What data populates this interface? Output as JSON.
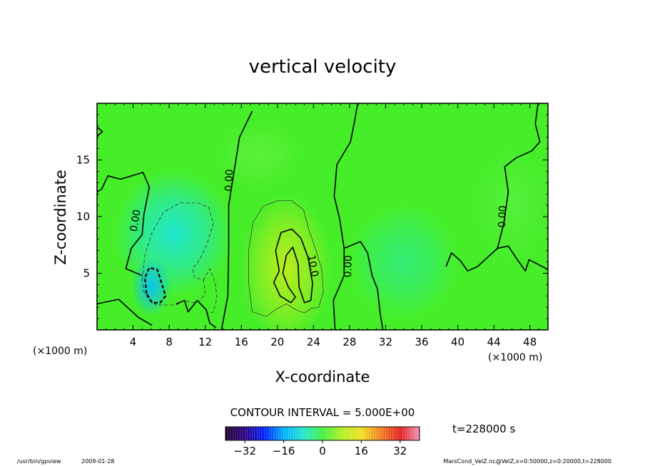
{
  "chart_data": {
    "type": "heatmap",
    "title": "vertical velocity",
    "xlabel": "X-coordinate",
    "ylabel": "Z-coordinate",
    "x_unit_label": "(×1000 m)",
    "y_unit_label": "(×1000 m)",
    "xlim": [
      0,
      50
    ],
    "ylim": [
      0,
      20
    ],
    "x_ticks": [
      4,
      8,
      12,
      16,
      20,
      24,
      28,
      32,
      36,
      40,
      44,
      48
    ],
    "y_ticks": [
      5,
      10,
      15
    ],
    "contour_interval_text": "CONTOUR INTERVAL = 5.000E+00",
    "contour_labels": [
      "0.00",
      "0.00",
      "0.00",
      "0.00",
      "10.0"
    ],
    "colorbar": {
      "min": -40,
      "max": 40,
      "ticks": [
        -32,
        -16,
        0,
        16,
        32
      ],
      "colors": [
        "#200030",
        "#2a0080",
        "#0020ff",
        "#00b0ff",
        "#20e8d0",
        "#40f040",
        "#b0f020",
        "#f0e020",
        "#f08020",
        "#e02020",
        "#f090b0"
      ]
    },
    "fields": [
      {
        "x": 8.5,
        "z": 8.5,
        "rx": 6.5,
        "rz": 5.5,
        "value": -8
      },
      {
        "x": 6.0,
        "z": 3.8,
        "rx": 2.2,
        "rz": 2.6,
        "value": -13
      },
      {
        "x": 21.0,
        "z": 5.5,
        "rx": 5.0,
        "rz": 6.5,
        "value": 9
      },
      {
        "x": 18.0,
        "z": 15.5,
        "rx": 4.5,
        "rz": 3.0,
        "value": 2
      },
      {
        "x": 34.0,
        "z": 6.0,
        "rx": 6.0,
        "rz": 5.0,
        "value": -3
      },
      {
        "x": 46.0,
        "z": 11.0,
        "rx": 4.0,
        "rz": 5.0,
        "value": 1.5
      }
    ],
    "contours": [
      {
        "value": 0,
        "style": "solid",
        "points": [
          [
            13.8,
            0
          ],
          [
            14.5,
            3
          ],
          [
            14.6,
            7
          ],
          [
            14.6,
            11
          ],
          [
            15.2,
            14
          ],
          [
            15.8,
            17
          ],
          [
            17.2,
            19.3
          ]
        ]
      },
      {
        "value": 0,
        "style": "solid",
        "points": [
          [
            5,
            4.8
          ],
          [
            3.2,
            5.4
          ],
          [
            3.8,
            7.2
          ],
          [
            5,
            8.4
          ],
          [
            5.2,
            10.2
          ],
          [
            5.8,
            12.6
          ],
          [
            5.1,
            13.9
          ],
          [
            2.6,
            13.3
          ],
          [
            1.2,
            13.6
          ],
          [
            0.5,
            12.4
          ],
          [
            0,
            12.2
          ]
        ]
      },
      {
        "value": 0,
        "style": "solid",
        "points": [
          [
            0,
            2.3
          ],
          [
            2.4,
            2.7
          ],
          [
            4.6,
            1.1
          ],
          [
            6.1,
            0.4
          ]
        ]
      },
      {
        "value": 0,
        "style": "solid",
        "points": [
          [
            8.8,
            2.3
          ],
          [
            9.7,
            2.6
          ],
          [
            10.1,
            1.6
          ],
          [
            11.1,
            2.6
          ],
          [
            12.1,
            1.8
          ],
          [
            12.5,
            0.6
          ],
          [
            13.2,
            0.2
          ]
        ]
      },
      {
        "value": 0,
        "style": "solid",
        "points": [
          [
            26.4,
            0
          ],
          [
            26.2,
            2.6
          ],
          [
            27.4,
            4.8
          ],
          [
            27.4,
            7.2
          ],
          [
            29.2,
            7.8
          ],
          [
            30,
            6.8
          ],
          [
            30.5,
            4.8
          ],
          [
            31.1,
            3.6
          ],
          [
            31.4,
            1.4
          ],
          [
            31.7,
            0
          ]
        ]
      },
      {
        "value": 0,
        "style": "solid",
        "points": [
          [
            27.4,
            7.2
          ],
          [
            26.9,
            9.8
          ],
          [
            26.3,
            11.8
          ],
          [
            26.6,
            14.6
          ],
          [
            28.1,
            16.6
          ],
          [
            28.6,
            18.6
          ],
          [
            28.9,
            20
          ]
        ]
      },
      {
        "value": 0,
        "style": "solid",
        "points": [
          [
            38.7,
            5.6
          ],
          [
            39.3,
            6.8
          ],
          [
            40.3,
            6.1
          ],
          [
            41.1,
            5.2
          ],
          [
            42.2,
            5.6
          ],
          [
            43.3,
            6.4
          ],
          [
            44.4,
            7.2
          ],
          [
            45.6,
            7.4
          ],
          [
            46.6,
            6.2
          ],
          [
            47.5,
            5.2
          ],
          [
            47.9,
            6.2
          ],
          [
            49.6,
            5.5
          ],
          [
            50,
            5.3
          ]
        ]
      },
      {
        "value": 0,
        "style": "solid",
        "points": [
          [
            44.4,
            7.2
          ],
          [
            45.1,
            9.4
          ],
          [
            45.6,
            12.2
          ],
          [
            45.2,
            14.4
          ],
          [
            46.5,
            15.2
          ],
          [
            48.2,
            15.8
          ],
          [
            49.1,
            16.6
          ],
          [
            48.6,
            18.2
          ],
          [
            48.9,
            20
          ]
        ]
      },
      {
        "value": 0,
        "style": "solid",
        "points": [
          [
            0,
            17.1
          ],
          [
            0.6,
            17.5
          ],
          [
            0,
            17.9
          ]
        ]
      },
      {
        "value": 10,
        "style": "solid",
        "points": [
          [
            20.2,
            5.2
          ],
          [
            19.8,
            7.0
          ],
          [
            20.4,
            8.6
          ],
          [
            21.6,
            8.9
          ],
          [
            22.6,
            8.1
          ],
          [
            23.4,
            6.4
          ],
          [
            23.9,
            4.1
          ],
          [
            23.7,
            2.6
          ],
          [
            23.0,
            2.4
          ],
          [
            22.4,
            3.8
          ],
          [
            22.3,
            5.8
          ],
          [
            21.7,
            7.3
          ],
          [
            21.0,
            6.6
          ],
          [
            20.6,
            5.0
          ],
          [
            21.2,
            3.8
          ],
          [
            22.0,
            2.9
          ],
          [
            21.5,
            2.4
          ],
          [
            20.3,
            3.0
          ],
          [
            19.6,
            4.2
          ],
          [
            20.2,
            5.2
          ]
        ]
      },
      {
        "value": 5,
        "style": "thin",
        "points": [
          [
            17.2,
            1.6
          ],
          [
            16.8,
            4.2
          ],
          [
            16.8,
            7.0
          ],
          [
            17.3,
            9.5
          ],
          [
            18.4,
            10.9
          ],
          [
            20.0,
            11.4
          ],
          [
            21.6,
            11.4
          ],
          [
            22.9,
            10.6
          ],
          [
            23.5,
            8.8
          ],
          [
            24.2,
            7.2
          ],
          [
            24.9,
            5.4
          ],
          [
            25.1,
            3.4
          ],
          [
            24.6,
            2.0
          ],
          [
            23.8,
            1.9
          ],
          [
            23.0,
            1.5
          ],
          [
            22.0,
            1.8
          ],
          [
            21.0,
            2.3
          ],
          [
            19.8,
            1.8
          ],
          [
            18.8,
            1.2
          ],
          [
            18.0,
            1.4
          ],
          [
            17.2,
            1.6
          ]
        ]
      },
      {
        "value": -5,
        "style": "dashed",
        "points": [
          [
            5.0,
            4.4
          ],
          [
            5.3,
            6.6
          ],
          [
            6.1,
            8.6
          ],
          [
            7.4,
            10.4
          ],
          [
            9.2,
            11.2
          ],
          [
            11.2,
            11.2
          ],
          [
            12.4,
            10.8
          ],
          [
            12.9,
            9.4
          ],
          [
            12.2,
            7.6
          ],
          [
            11.4,
            6.2
          ],
          [
            10.6,
            5.4
          ],
          [
            10.8,
            4.6
          ],
          [
            11.8,
            4.4
          ],
          [
            12.0,
            3.2
          ],
          [
            11.4,
            2.6
          ],
          [
            10.6,
            2.4
          ],
          [
            9.6,
            2.6
          ],
          [
            8.8,
            2.2
          ],
          [
            7.6,
            2.2
          ],
          [
            6.6,
            2.2
          ],
          [
            5.8,
            2.6
          ],
          [
            5.2,
            3.4
          ],
          [
            5.0,
            4.4
          ]
        ]
      },
      {
        "value": -5,
        "style": "dashed",
        "points": [
          [
            11.8,
            4.4
          ],
          [
            12.5,
            5.4
          ],
          [
            13.1,
            4.2
          ],
          [
            13.3,
            2.8
          ],
          [
            12.9,
            1.6
          ],
          [
            12.2,
            1.4
          ]
        ]
      },
      {
        "value": -10,
        "style": "dashed-bold",
        "points": [
          [
            5.5,
            3.2
          ],
          [
            5.3,
            4.6
          ],
          [
            5.8,
            5.5
          ],
          [
            6.7,
            5.3
          ],
          [
            7.2,
            4.0
          ],
          [
            7.6,
            3.0
          ],
          [
            7.0,
            2.4
          ],
          [
            6.1,
            2.4
          ],
          [
            5.5,
            3.2
          ]
        ]
      }
    ],
    "time_label": "t=228000 s",
    "footer_left_path": "/usr/bin/gpview",
    "footer_left_date": "2009-01-28",
    "footer_right": "MarsCond_VelZ.nc@VelZ,x=0:50000,z=0:20000,t=228000"
  }
}
